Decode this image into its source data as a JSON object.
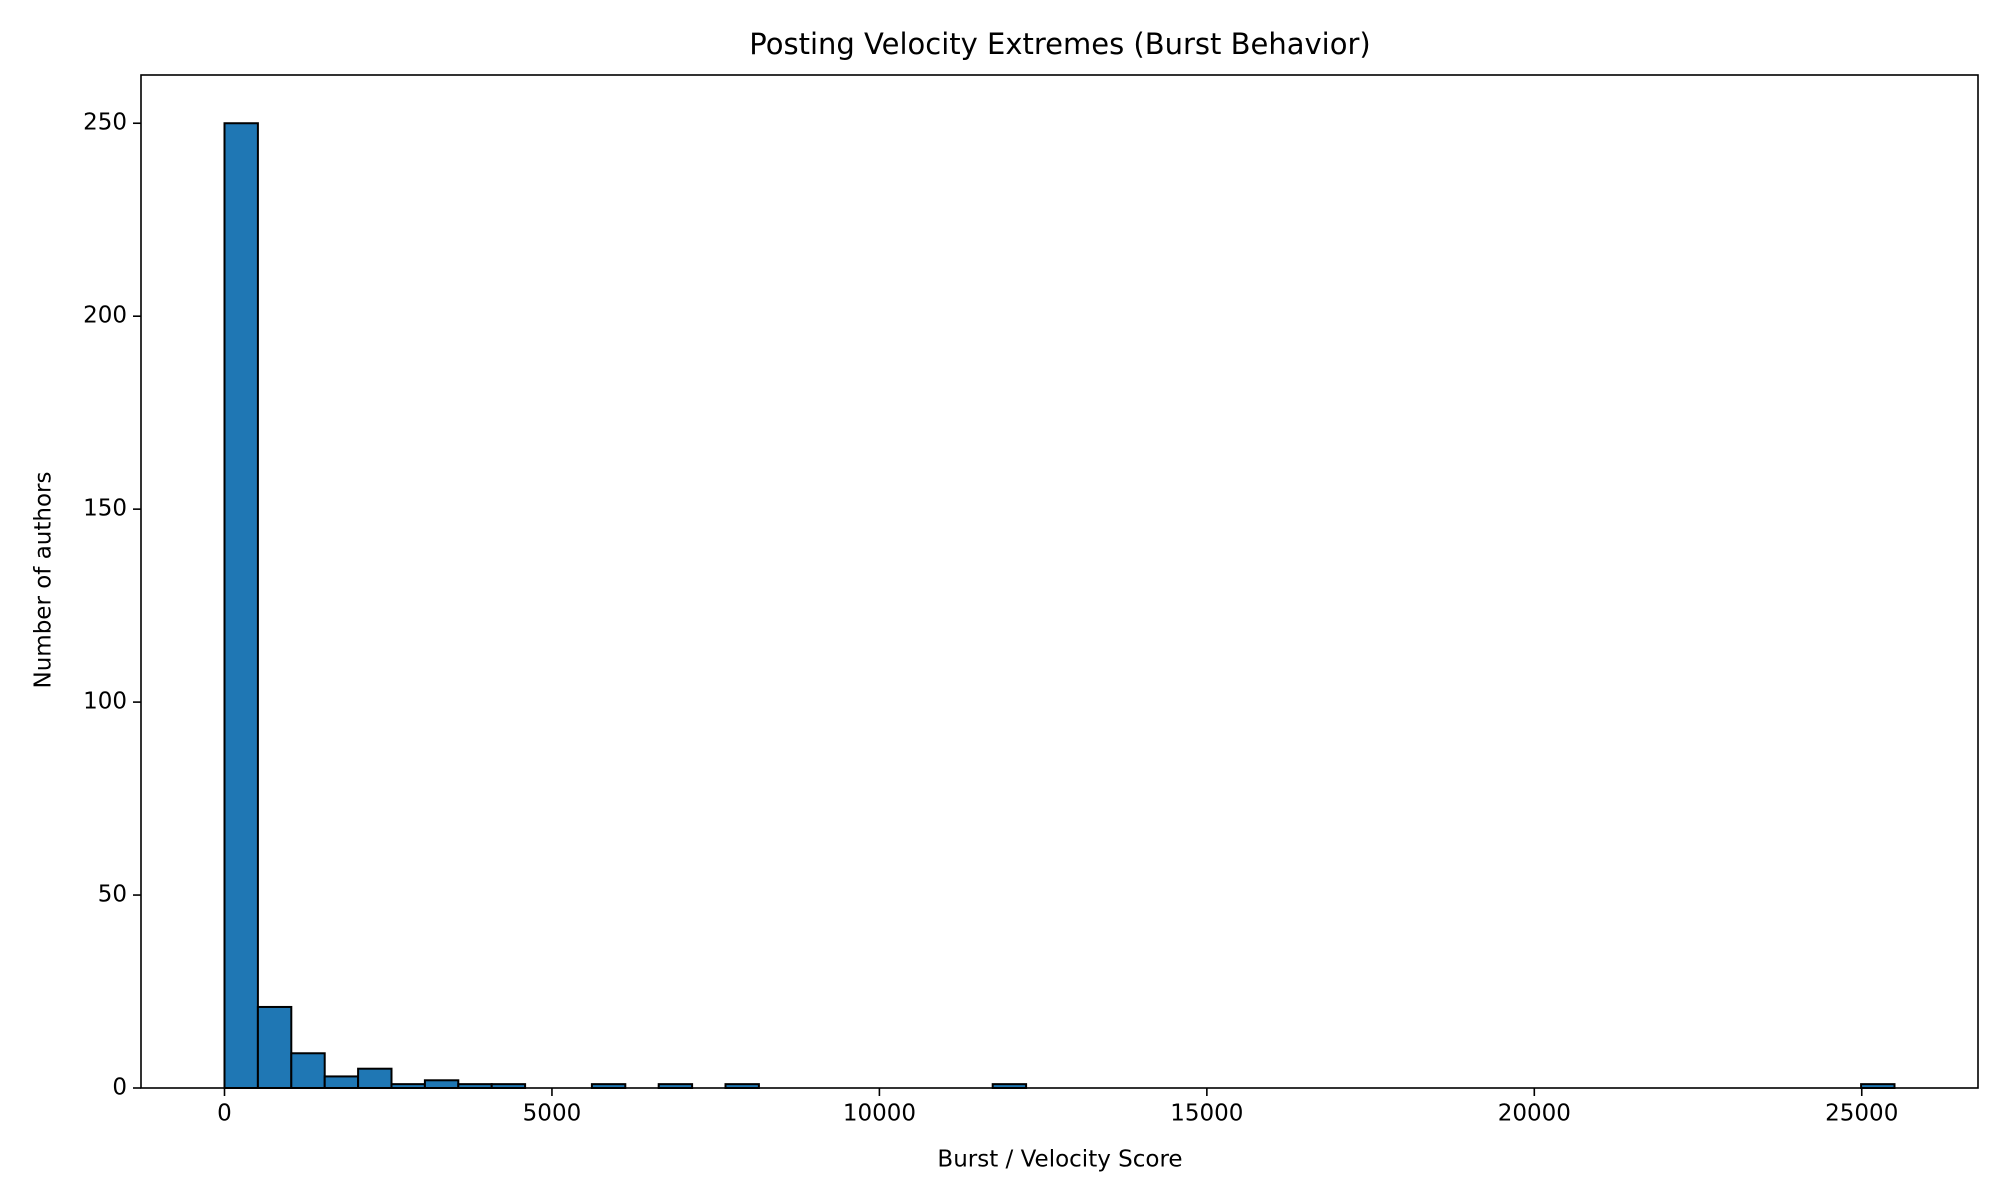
{
  "chart_data": {
    "type": "histogram",
    "title": "Posting Velocity Extremes (Burst Behavior)",
    "x_label": "Burst / Velocity Score",
    "y_label": "Number of authors",
    "bins": [
      0,
      510,
      1020,
      1530,
      2040,
      2550,
      3060,
      3570,
      4080,
      4590,
      5100,
      5610,
      6120,
      6630,
      7140,
      7650,
      8160,
      8670,
      9180,
      9690,
      10200,
      10710,
      11220,
      11730,
      12240,
      12750,
      13260,
      13770,
      14280,
      14790,
      15300,
      15810,
      16320,
      16830,
      17340,
      17850,
      18360,
      18870,
      19380,
      19890,
      20400,
      20910,
      21420,
      21930,
      22440,
      22950,
      23460,
      23970,
      24480,
      24990,
      25500
    ],
    "values": [
      250,
      21,
      9,
      3,
      5,
      1,
      2,
      1,
      1,
      0,
      0,
      1,
      0,
      1,
      0,
      1,
      0,
      0,
      0,
      0,
      0,
      0,
      0,
      1,
      0,
      0,
      0,
      0,
      0,
      0,
      0,
      0,
      0,
      0,
      0,
      0,
      0,
      0,
      0,
      0,
      0,
      0,
      0,
      0,
      0,
      0,
      0,
      0,
      0,
      1
    ],
    "color": "#1f77b4",
    "edgecolor": "#000000",
    "xlim": [
      -1275,
      26775
    ],
    "ylim": [
      0,
      262.5
    ],
    "xticks": [
      0,
      5000,
      10000,
      15000,
      20000,
      25000
    ],
    "yticks": [
      0,
      50,
      100,
      150,
      200,
      250
    ]
  }
}
